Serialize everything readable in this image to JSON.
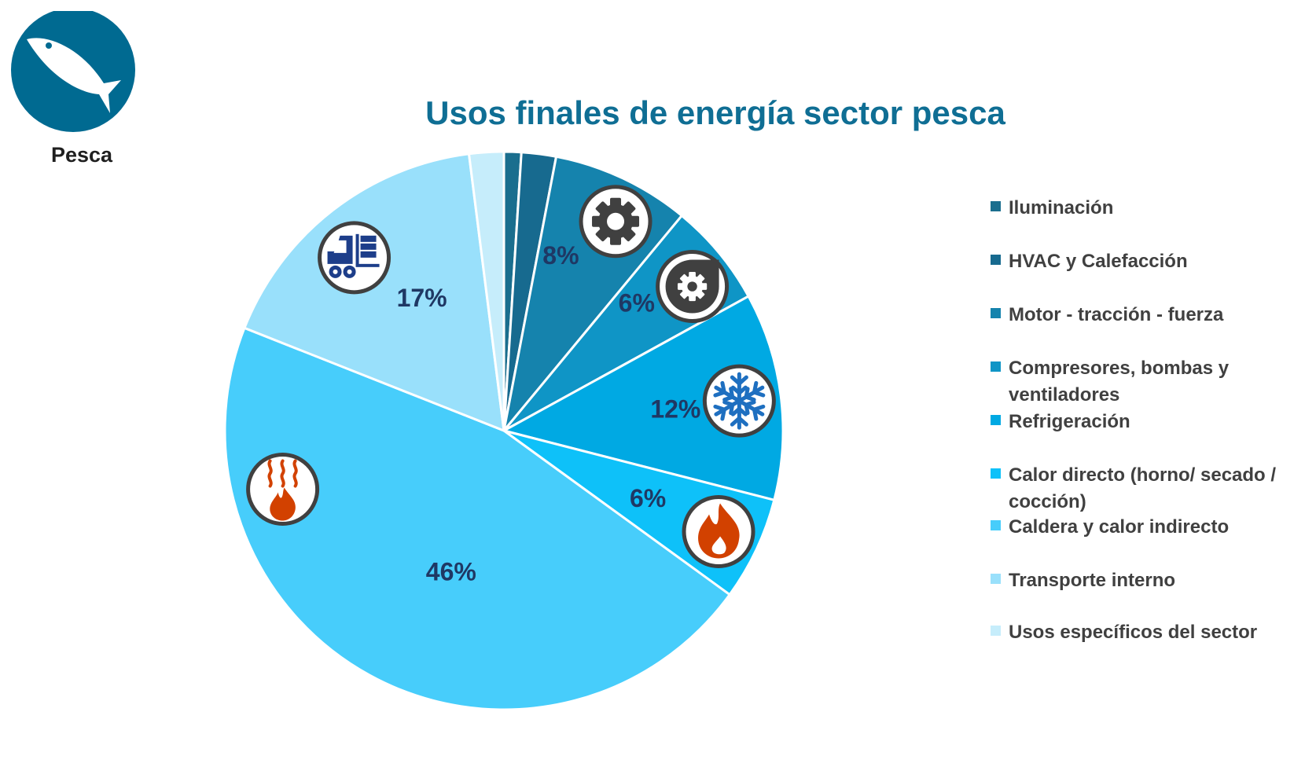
{
  "logo": {
    "caption": "Pesca",
    "icon": "fish-icon",
    "color": "#006a91"
  },
  "chart_data": {
    "type": "pie",
    "title": "Usos finales de energía sector pesca",
    "categories": [
      "Iluminación",
      "HVAC y Calefacción",
      "Motor - tracción - fuerza",
      "Compresores, bombas y ventiladores",
      "Refrigeración",
      "Calor directo (horno/ secado / cocción)",
      "Caldera y calor indirecto",
      "Transporte interno",
      "Usos específicos del sector"
    ],
    "values": [
      1,
      2,
      8,
      6,
      12,
      6,
      46,
      17,
      2
    ],
    "labels": [
      "",
      "",
      "8%",
      "6%",
      "12%",
      "6%",
      "46%",
      "17%",
      ""
    ],
    "colors": [
      "#1a6e8e",
      "#176a8f",
      "#1583ad",
      "#0f95c6",
      "#00a9e3",
      "#0ec1f9",
      "#47cdfb",
      "#99e0fb",
      "#c6edfb"
    ],
    "icons": [
      "",
      "",
      "gear-icon",
      "pump-gear-icon",
      "snowflake-icon",
      "flame-icon",
      "heat-flame-icon",
      "forklift-icon",
      ""
    ],
    "start_angle_deg": 0,
    "direction": "clockwise",
    "legend_position": "right"
  }
}
